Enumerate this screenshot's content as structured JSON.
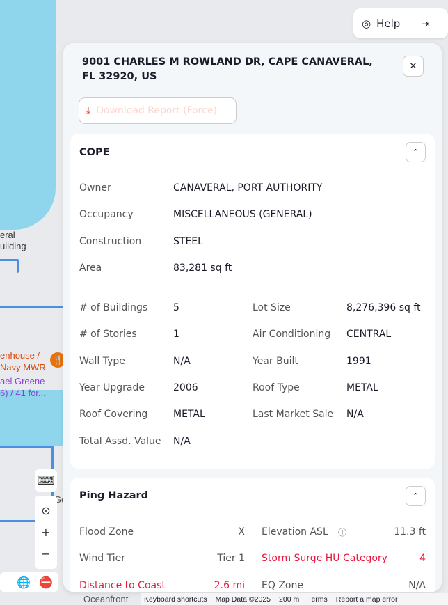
{
  "header": {
    "help_label": "Help",
    "help_icon": "lifebuoy-icon",
    "logout_icon": "logout-icon"
  },
  "panel": {
    "address": "9001 CHARLES M ROWLAND DR, CAPE CANAVERAL, FL 32920, US",
    "download_label": "Download Report (Force)"
  },
  "cope": {
    "title": "COPE",
    "top": [
      {
        "label": "Owner",
        "value": "CANAVERAL, PORT AUTHORITY"
      },
      {
        "label": "Occupancy",
        "value": "MISCELLANEOUS (GENERAL)"
      },
      {
        "label": "Construction",
        "value": "STEEL"
      },
      {
        "label": "Area",
        "value": "83,281 sq ft"
      }
    ],
    "left": [
      {
        "label": "# of Buildings",
        "value": "5"
      },
      {
        "label": "# of Stories",
        "value": "1"
      },
      {
        "label": "Wall Type",
        "value": "N/A"
      },
      {
        "label": "Year Upgrade",
        "value": "2006"
      },
      {
        "label": "Roof Covering",
        "value": "METAL"
      },
      {
        "label": "Total Assd. Value",
        "value": "N/A"
      }
    ],
    "right": [
      {
        "label": "Lot Size",
        "value": "8,276,396 sq ft"
      },
      {
        "label": "Air Conditioning",
        "value": "CENTRAL"
      },
      {
        "label": "Year Built",
        "value": "1991"
      },
      {
        "label": "Roof Type",
        "value": "METAL"
      },
      {
        "label": "Last Market Sale",
        "value": "N/A"
      }
    ]
  },
  "hazard": {
    "title": "Ping Hazard",
    "left": [
      {
        "label": "Flood Zone",
        "value": "X"
      },
      {
        "label": "Wind Tier",
        "value": "Tier 1"
      },
      {
        "label": "Distance to Coast",
        "value": "2.6 mi",
        "alert": true
      }
    ],
    "right": [
      {
        "label": "Elevation ASL",
        "value": "11.3 ft"
      },
      {
        "label": "Storm Surge HU Category",
        "value": "4",
        "alert": true
      },
      {
        "label": "EQ Zone",
        "value": "N/A"
      }
    ]
  },
  "map": {
    "labels": [
      "eral",
      "uilding",
      "enhouse /",
      "Navy MWR",
      "ael Greene",
      "6) / 41 for...",
      "Ge",
      "Oceanfront"
    ],
    "footer": [
      "Keyboard shortcuts",
      "Map Data ©2025",
      "200 m",
      "Terms",
      "Report a map error"
    ]
  },
  "colors": {
    "alert": "#e8173f",
    "water": "#8fd6ec",
    "route": "#4a8fe0"
  }
}
